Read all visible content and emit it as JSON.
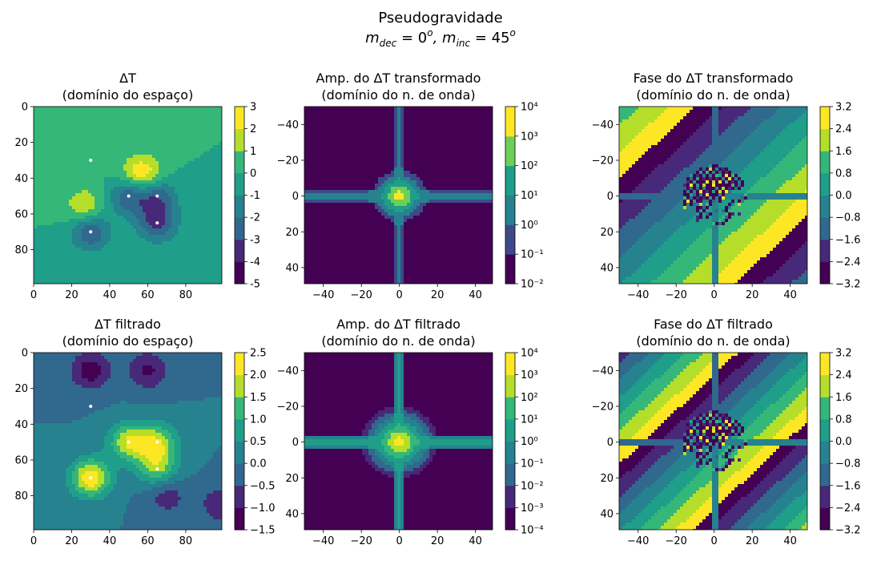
{
  "figure": {
    "title": "Pseudogravidade",
    "subtitle_parts": [
      "m",
      "dec",
      " = 0",
      "o",
      ", m",
      "inc",
      " = 45",
      "o"
    ]
  },
  "palette": [
    "#440154",
    "#482878",
    "#3e4989",
    "#31688e",
    "#26828e",
    "#1f9e89",
    "#35b779",
    "#6ece58",
    "#b5de2b",
    "#fde725"
  ],
  "chart_data": [
    {
      "type": "heatmap",
      "title_line1": "ΔT",
      "title_line2": "(domínio do espaço)",
      "domain": "space",
      "xlim": [
        0,
        99
      ],
      "ylim": [
        99,
        0
      ],
      "xticks": [
        "0",
        "20",
        "40",
        "60",
        "80"
      ],
      "yticks": [
        "0",
        "20",
        "40",
        "60",
        "80"
      ],
      "colorbar_ticks": [
        "-5",
        "-4",
        "-3",
        "-2",
        "-1",
        "0",
        "1",
        "2",
        "3"
      ],
      "color_levels": [
        -5,
        3
      ],
      "sources": [
        {
          "x": 30,
          "y": 30,
          "amp": 0.6
        },
        {
          "x": 50,
          "y": 50,
          "amp": -2.8
        },
        {
          "x": 65,
          "y": 50,
          "amp": -2.5
        },
        {
          "x": 65,
          "y": 65,
          "amp": -3.2
        },
        {
          "x": 30,
          "y": 70,
          "amp": -3.0
        },
        {
          "x": 57,
          "y": 38,
          "amp": 3.2
        },
        {
          "x": 27,
          "y": 56,
          "amp": 2.0
        }
      ],
      "markers": [
        [
          30,
          30
        ],
        [
          50,
          50
        ],
        [
          65,
          50
        ],
        [
          65,
          65
        ],
        [
          30,
          70
        ]
      ]
    },
    {
      "type": "heatmap",
      "title_line1": "Amp. do ΔT transformado",
      "title_line2": "(domínio do n. de onda)",
      "domain": "amp",
      "xlim": [
        -50,
        49
      ],
      "ylim": [
        49,
        -50
      ],
      "xticks": [
        "−40",
        "−20",
        "0",
        "20",
        "40"
      ],
      "yticks": [
        "−40",
        "−20",
        "0",
        "20",
        "40"
      ],
      "colorbar_ticks": [
        "10⁻²",
        "10⁻¹",
        "10⁰",
        "10¹",
        "10²",
        "10³",
        "10⁴"
      ],
      "color_levels": [
        -2,
        4
      ]
    },
    {
      "type": "heatmap",
      "title_line1": "Fase do ΔT transformado",
      "title_line2": "(domínio do n. de onda)",
      "domain": "phase",
      "xlim": [
        -50,
        49
      ],
      "ylim": [
        49,
        -50
      ],
      "xticks": [
        "−40",
        "−20",
        "0",
        "20",
        "40"
      ],
      "yticks": [
        "−40",
        "−20",
        "0",
        "20",
        "40"
      ],
      "colorbar_ticks": [
        "−3.2",
        "−2.4",
        "−1.6",
        "−0.8",
        "0.0",
        "0.8",
        "1.6",
        "2.4",
        "3.2"
      ],
      "color_levels": [
        -3.2,
        3.2
      ]
    },
    {
      "type": "heatmap",
      "title_line1": "ΔT filtrado",
      "title_line2": "(domínio do espaço)",
      "domain": "space",
      "xlim": [
        0,
        99
      ],
      "ylim": [
        99,
        0
      ],
      "xticks": [
        "0",
        "20",
        "40",
        "60",
        "80"
      ],
      "yticks": [
        "0",
        "20",
        "40",
        "60",
        "80"
      ],
      "colorbar_ticks": [
        "−1.5",
        "−1.0",
        "−0.5",
        "0.0",
        "0.5",
        "1.0",
        "1.5",
        "2.0",
        "2.5"
      ],
      "color_levels": [
        -1.5,
        2.5
      ],
      "sources": [
        {
          "x": 30,
          "y": 70,
          "amp": 2.4
        },
        {
          "x": 50,
          "y": 50,
          "amp": 1.9
        },
        {
          "x": 65,
          "y": 50,
          "amp": 1.7
        },
        {
          "x": 65,
          "y": 64,
          "amp": 1.6
        },
        {
          "x": 30,
          "y": 10,
          "amp": -1.3
        },
        {
          "x": 60,
          "y": 10,
          "amp": -1.1
        },
        {
          "x": 70,
          "y": 80,
          "amp": -0.8
        },
        {
          "x": 99,
          "y": 85,
          "amp": -1.0
        }
      ],
      "markers": [
        [
          30,
          30
        ],
        [
          50,
          50
        ],
        [
          65,
          50
        ],
        [
          65,
          65
        ],
        [
          30,
          70
        ]
      ]
    },
    {
      "type": "heatmap",
      "title_line1": "Amp. do ΔT filtrado",
      "title_line2": "(domínio do n. de onda)",
      "domain": "amp",
      "xlim": [
        -50,
        49
      ],
      "ylim": [
        49,
        -50
      ],
      "xticks": [
        "−40",
        "−20",
        "0",
        "20",
        "40"
      ],
      "yticks": [
        "−40",
        "−20",
        "0",
        "20",
        "40"
      ],
      "colorbar_ticks": [
        "10⁻⁴",
        "10⁻³",
        "10⁻²",
        "10⁻¹",
        "10⁰",
        "10¹",
        "10²",
        "10³",
        "10⁴"
      ],
      "color_levels": [
        -4,
        4
      ]
    },
    {
      "type": "heatmap",
      "title_line1": "Fase do ΔT filtrado",
      "title_line2": "(domínio do n. de onda)",
      "domain": "phase",
      "xlim": [
        -50,
        49
      ],
      "ylim": [
        49,
        -50
      ],
      "xticks": [
        "−40",
        "−20",
        "0",
        "20",
        "40"
      ],
      "yticks": [
        "−40",
        "−20",
        "0",
        "20",
        "40"
      ],
      "colorbar_ticks": [
        "−3.2",
        "−2.4",
        "−1.6",
        "−0.8",
        "0.0",
        "0.8",
        "1.6",
        "2.4",
        "3.2"
      ],
      "color_levels": [
        -3.2,
        3.2
      ]
    }
  ]
}
